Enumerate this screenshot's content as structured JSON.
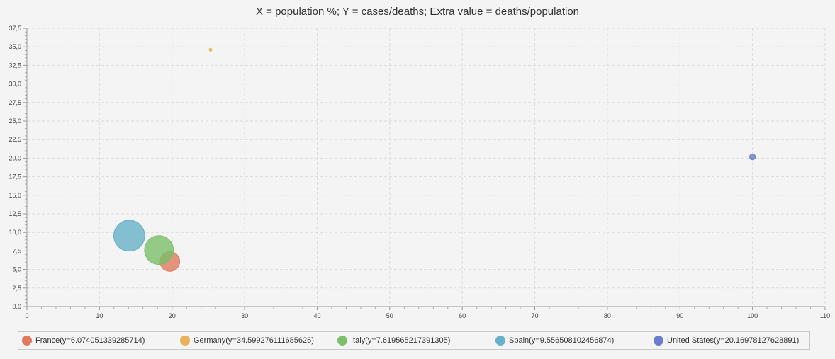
{
  "chart_data": {
    "type": "scatter",
    "subtype": "bubble",
    "title": "X = population %; Y = cases/deaths; Extra value = deaths/population",
    "xlabel": "",
    "ylabel": "",
    "xlim": [
      0,
      110
    ],
    "ylim": [
      0,
      37.5
    ],
    "x_ticks": [
      "0",
      "10",
      "20",
      "30",
      "40",
      "50",
      "60",
      "70",
      "80",
      "90",
      "100",
      "110"
    ],
    "y_ticks": [
      "0,0",
      "2,5",
      "5,0",
      "7,5",
      "10,0",
      "12,5",
      "15,0",
      "17,5",
      "20,0",
      "22,5",
      "25,0",
      "27,5",
      "30,0",
      "32,5",
      "35,0",
      "37,5"
    ],
    "grid": true,
    "legend_position": "bottom",
    "series": [
      {
        "name": "France",
        "legend_label": "France(y=6.074051339285714)",
        "color": "#e07a5f",
        "x": 19.7,
        "y": 6.074051339285714,
        "extra": 0.102
      },
      {
        "name": "Germany",
        "legend_label": "Germany(y=34.599276111685626)",
        "color": "#e8b15a",
        "x": 25.3,
        "y": 34.599276111685626,
        "extra": 0.012
      },
      {
        "name": "Italy",
        "legend_label": "Italy(y=7.619565217391305)",
        "color": "#7bbf6a",
        "x": 18.2,
        "y": 7.619565217391305,
        "extra": 0.15
      },
      {
        "name": "Spain",
        "legend_label": "Spain(y=9.556508102456874)",
        "color": "#66b1c8",
        "x": 14.1,
        "y": 9.556508102456874,
        "extra": 0.16
      },
      {
        "name": "United States",
        "legend_label": "United States(y=20.16978127628891)",
        "color": "#6a7ccb",
        "x": 100,
        "y": 20.16978127628891,
        "extra": 0.03
      }
    ]
  }
}
